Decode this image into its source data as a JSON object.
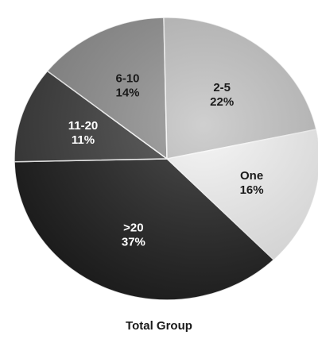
{
  "chart_data": {
    "type": "pie",
    "title": "Total Group",
    "slices": [
      {
        "category": "One",
        "value": 16,
        "label": "16%",
        "color": "#f4f4f4",
        "text_color": "#1a1a1a"
      },
      {
        "category": ">20",
        "value": 37,
        "label": "37%",
        "color": "#1c1c1c",
        "text_color": "#ffffff"
      },
      {
        "category": "11-20",
        "value": 11,
        "label": "11%",
        "color": "#3a3a3a",
        "text_color": "#ffffff"
      },
      {
        "category": "6-10",
        "value": 14,
        "label": "14%",
        "color": "#8e8e8e",
        "text_color": "#1a1a1a"
      },
      {
        "category": "2-5",
        "value": 22,
        "label": "22%",
        "color": "#c2c2c2",
        "text_color": "#1a1a1a"
      }
    ]
  }
}
